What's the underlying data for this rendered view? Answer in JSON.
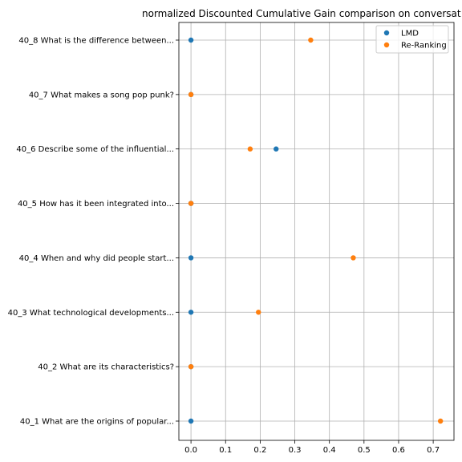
{
  "chart_data": {
    "type": "scatter",
    "title": "normalized Discounted Cumulative Gain comparison on conversat",
    "xlabel": "",
    "ylabel": "",
    "xlim": [
      -0.035,
      0.76
    ],
    "x_ticks": [
      "0.0",
      "0.1",
      "0.2",
      "0.3",
      "0.4",
      "0.5",
      "0.6",
      "0.7"
    ],
    "x_tick_values": [
      0.0,
      0.1,
      0.2,
      0.3,
      0.4,
      0.5,
      0.6,
      0.7
    ],
    "grid": true,
    "legend_position": "top-right",
    "categories": [
      "40_1 What are the origins of popular...",
      "40_2 What are its characteristics?",
      "40_3 What technological developments...",
      "40_4 When and why did people start...",
      "40_5 How has it been integrated into...",
      "40_6 Describe some of the influential...",
      "40_7 What makes a song pop punk?",
      "40_8 What is the difference between..."
    ],
    "series": [
      {
        "name": "LMD",
        "color": "#1f77b4",
        "values": [
          0.0,
          0.0,
          0.0,
          0.0,
          0.0,
          0.246,
          0.0,
          0.0
        ]
      },
      {
        "name": "Re-Ranking",
        "color": "#ff7f0e",
        "values": [
          0.721,
          0.0,
          0.195,
          0.469,
          0.0,
          0.171,
          0.0,
          0.346
        ]
      }
    ]
  }
}
